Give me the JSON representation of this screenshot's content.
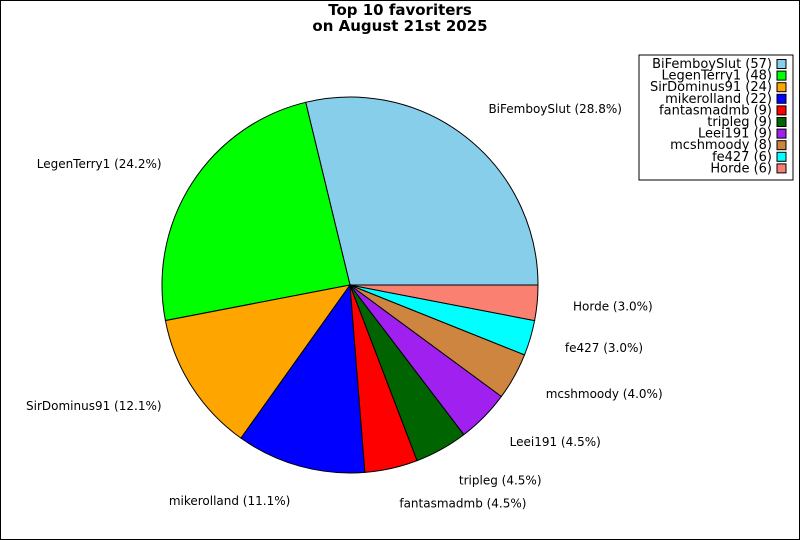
{
  "chart_data": {
    "type": "pie",
    "title_line1": "Top 10 favoriters",
    "title_line2": "on August 21st 2025",
    "slices": [
      {
        "name": "BiFemboySlut",
        "value": 57,
        "label": "BiFemboySlut (28.8%)",
        "legend": "BiFemboySlut (57)",
        "color": "#87ceeb"
      },
      {
        "name": "LegenTerry1",
        "value": 48,
        "label": "LegenTerry1 (24.2%)",
        "legend": "LegenTerry1 (48)",
        "color": "#00ff00"
      },
      {
        "name": "SirDominus91",
        "value": 24,
        "label": "SirDominus91 (12.1%)",
        "legend": "SirDominus91 (24)",
        "color": "#ffa500"
      },
      {
        "name": "mikerolland",
        "value": 22,
        "label": "mikerolland (11.1%)",
        "legend": "mikerolland (22)",
        "color": "#0000ff"
      },
      {
        "name": "fantasmadmb",
        "value": 9,
        "label": "fantasmadmb (4.5%)",
        "legend": "fantasmadmb (9)",
        "color": "#ff0000"
      },
      {
        "name": "tripleg",
        "value": 9,
        "label": "tripleg (4.5%)",
        "legend": "tripleg (9)",
        "color": "#006400"
      },
      {
        "name": "Leei191",
        "value": 9,
        "label": "Leei191 (4.5%)",
        "legend": "Leei191 (9)",
        "color": "#a020f0"
      },
      {
        "name": "mcshmoody",
        "value": 8,
        "label": "mcshmoody (4.0%)",
        "legend": "mcshmoody (8)",
        "color": "#cd853f"
      },
      {
        "name": "fe427",
        "value": 6,
        "label": "fe427 (3.0%)",
        "legend": "fe427 (6)",
        "color": "#00ffff"
      },
      {
        "name": "Horde",
        "value": 6,
        "label": "Horde (3.0%)",
        "legend": "Horde (6)",
        "color": "#fa8072"
      }
    ],
    "legend_position": "top-right"
  }
}
